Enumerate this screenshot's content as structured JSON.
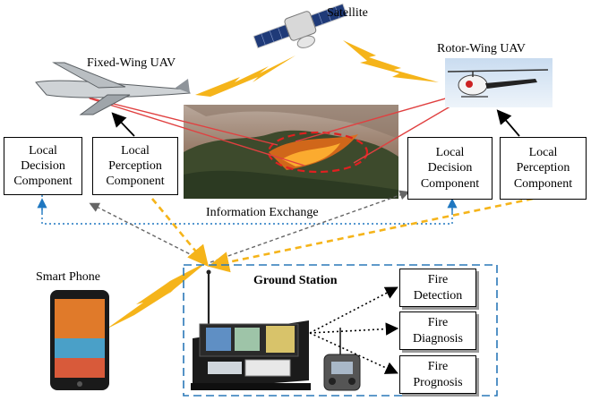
{
  "nodes": {
    "satellite": "Satellite",
    "fixed_wing_uav": "Fixed-Wing UAV",
    "rotor_wing_uav": "Rotor-Wing UAV",
    "smart_phone": "Smart Phone",
    "information_exchange": "Information Exchange",
    "ground_station": "Ground Station"
  },
  "left_components": {
    "decision": [
      "Local",
      "Decision",
      "Component"
    ],
    "perception": [
      "Local",
      "Perception",
      "Component"
    ]
  },
  "right_components": {
    "decision": [
      "Local",
      "Decision",
      "Component"
    ],
    "perception": [
      "Local",
      "Perception",
      "Component"
    ]
  },
  "outputs": [
    [
      "Fire",
      "Detection"
    ],
    [
      "Fire",
      "Diagnosis"
    ],
    [
      "Fire",
      "Prognosis"
    ]
  ],
  "colors": {
    "lightning": "#f5b41a",
    "link_blue": "#1f77c0",
    "link_gray": "#666666",
    "sensing_red": "#e04040",
    "station_border": "#2a78b8"
  }
}
